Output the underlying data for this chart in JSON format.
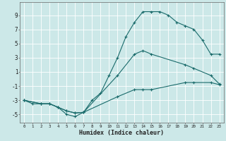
{
  "xlabel": "Humidex (Indice chaleur)",
  "background_color": "#cce8e8",
  "grid_color": "#b0d0d0",
  "line_color": "#1a6b6b",
  "xlim": [
    -0.5,
    23.5
  ],
  "ylim": [
    -6.2,
    10.8
  ],
  "xticks": [
    0,
    1,
    2,
    3,
    4,
    5,
    6,
    7,
    8,
    9,
    10,
    11,
    12,
    13,
    14,
    15,
    16,
    17,
    18,
    19,
    20,
    21,
    22,
    23
  ],
  "yticks": [
    -5,
    -3,
    -1,
    1,
    3,
    5,
    7,
    9
  ],
  "curve1_x": [
    0,
    1,
    2,
    3,
    4,
    5,
    6,
    7,
    8,
    9,
    10,
    11,
    12,
    13,
    14,
    15,
    16,
    17,
    18,
    19,
    20,
    21,
    22,
    23
  ],
  "curve1_y": [
    -3.0,
    -3.5,
    -3.5,
    -3.5,
    -4.0,
    -5.0,
    -5.3,
    -4.7,
    -3.0,
    -2.0,
    0.5,
    3.0,
    6.0,
    8.0,
    9.5,
    9.5,
    9.5,
    9.0,
    8.0,
    7.5,
    7.0,
    5.5,
    3.5,
    3.5
  ],
  "curve2_x": [
    0,
    2,
    3,
    4,
    5,
    6,
    7,
    11,
    13,
    14,
    15,
    19,
    20,
    22,
    23
  ],
  "curve2_y": [
    -3.0,
    -3.5,
    -3.5,
    -4.0,
    -4.5,
    -4.8,
    -4.7,
    -2.5,
    -1.5,
    -1.5,
    -1.5,
    -0.5,
    -0.5,
    -0.5,
    -0.8
  ],
  "curve3_x": [
    0,
    2,
    3,
    4,
    5,
    6,
    7,
    11,
    13,
    14,
    15,
    19,
    20,
    22,
    23
  ],
  "curve3_y": [
    -3.0,
    -3.5,
    -3.5,
    -4.0,
    -4.5,
    -4.8,
    -4.7,
    0.5,
    3.5,
    4.0,
    3.5,
    2.0,
    1.5,
    0.5,
    -0.7
  ],
  "figsize": [
    3.2,
    2.0
  ],
  "dpi": 100
}
